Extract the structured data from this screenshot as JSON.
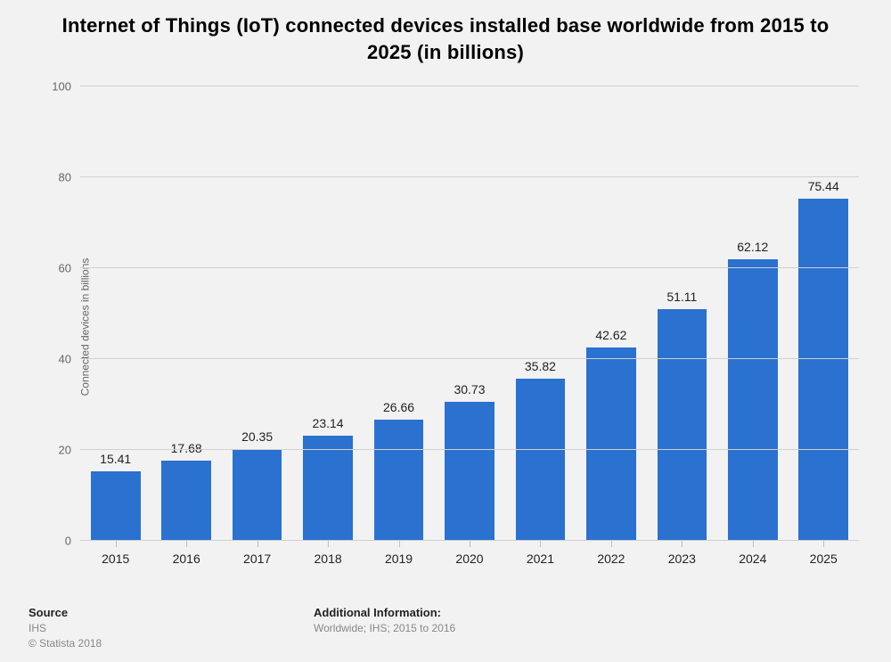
{
  "title": "Internet of Things (IoT) connected devices installed base worldwide from 2015 to 2025 (in billions)",
  "chart": {
    "type": "bar",
    "ylabel": "Connected devices in billions",
    "ylim": [
      0,
      100
    ],
    "ytick_step": 20,
    "categories": [
      "2015",
      "2016",
      "2017",
      "2018",
      "2019",
      "2020",
      "2021",
      "2022",
      "2023",
      "2024",
      "2025"
    ],
    "values": [
      15.41,
      17.68,
      20.35,
      23.14,
      26.66,
      30.73,
      35.82,
      42.62,
      51.11,
      62.12,
      75.44
    ],
    "bar_color": "#2a71d0",
    "background_color": "#f2f2f2",
    "grid_color": "#d0d0d0",
    "axis_color": "#c0c0c0",
    "value_label_fontsize": 14,
    "tick_fontsize": 13,
    "bar_width": 0.7
  },
  "footer": {
    "source_heading": "Source",
    "source_line1": "IHS",
    "source_line2": "© Statista 2018",
    "info_heading": "Additional Information:",
    "info_line1": "Worldwide; IHS; 2015 to 2016"
  }
}
